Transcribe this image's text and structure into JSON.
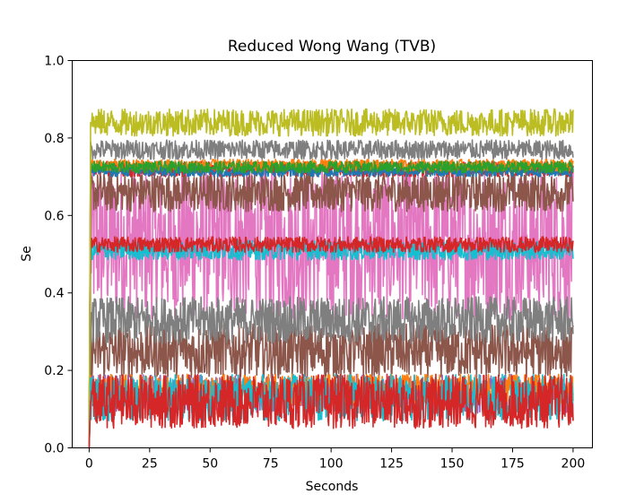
{
  "chart_data": {
    "type": "line",
    "title": "Reduced Wong Wang (TVB)",
    "xlabel": "Seconds",
    "ylabel": "Se",
    "xlim": [
      -7,
      208
    ],
    "ylim": [
      0.0,
      1.0
    ],
    "xticks": [
      0,
      25,
      50,
      75,
      100,
      125,
      150,
      175,
      200
    ],
    "yticks": [
      0.0,
      0.2,
      0.4,
      0.6,
      0.8,
      1.0
    ],
    "xtick_labels": [
      "0",
      "25",
      "50",
      "75",
      "100",
      "125",
      "150",
      "175",
      "200"
    ],
    "ytick_labels": [
      "0.0",
      "0.2",
      "0.4",
      "0.6",
      "0.8",
      "1.0"
    ],
    "grid": false,
    "legend": "none",
    "series": [
      {
        "center": 0.53,
        "amp": 0.2,
        "color": "#e377c2"
      },
      {
        "center": 0.66,
        "amp": 0.05,
        "color": "#8c564b"
      },
      {
        "center": 0.25,
        "amp": 0.07,
        "color": "#8c564b"
      },
      {
        "center": 0.33,
        "amp": 0.06,
        "color": "#7f7f7f"
      },
      {
        "center": 0.51,
        "amp": 0.025,
        "color": "#17becf"
      },
      {
        "center": 0.525,
        "amp": 0.02,
        "color": "#d62728"
      },
      {
        "center": 0.72,
        "amp": 0.02,
        "color": "#d62728"
      },
      {
        "center": 0.715,
        "amp": 0.015,
        "color": "#1f77b4"
      },
      {
        "center": 0.73,
        "amp": 0.015,
        "color": "#ff7f0e"
      },
      {
        "center": 0.725,
        "amp": 0.015,
        "color": "#2ca02c"
      },
      {
        "center": 0.77,
        "amp": 0.025,
        "color": "#7f7f7f"
      },
      {
        "center": 0.84,
        "amp": 0.035,
        "color": "#bcbd22"
      },
      {
        "center": 0.14,
        "amp": 0.05,
        "color": "#9467bd"
      },
      {
        "center": 0.15,
        "amp": 0.04,
        "color": "#ff7f0e"
      },
      {
        "center": 0.13,
        "amp": 0.06,
        "color": "#17becf"
      },
      {
        "center": 0.12,
        "amp": 0.07,
        "color": "#d62728"
      }
    ]
  }
}
